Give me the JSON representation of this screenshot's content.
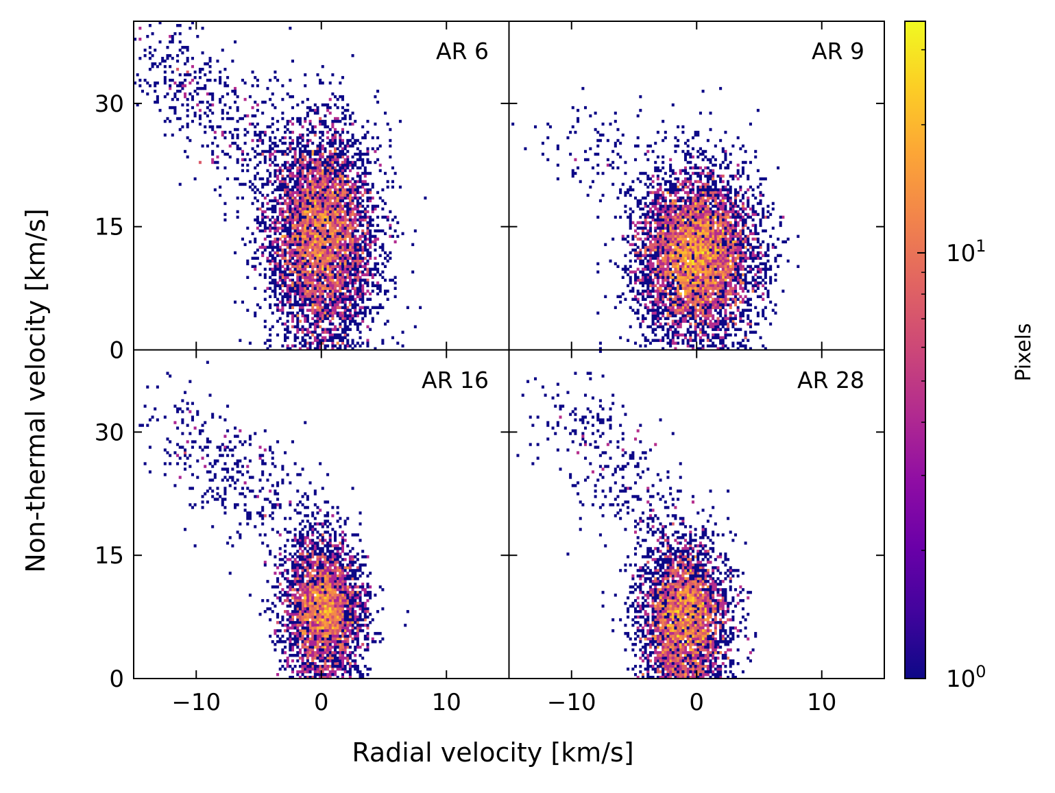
{
  "chart_data": {
    "type": "heatmap",
    "layout": "2x2 shared axes",
    "xlabel": "Radial velocity [km/s]",
    "ylabel": "Non-thermal velocity [km/s]",
    "xlim": [
      -15,
      15
    ],
    "ylim": [
      0,
      40
    ],
    "xticks": [
      -10,
      0,
      10
    ],
    "xtick_labels": [
      "−10",
      "0",
      "10"
    ],
    "yticks": [
      0,
      15,
      30
    ],
    "ytick_labels": [
      "0",
      "15",
      "30"
    ],
    "colorbar": {
      "label": "Pixels",
      "scale": "log",
      "range": [
        1,
        35
      ],
      "colormap": "plasma",
      "tick_values": [
        1,
        10
      ],
      "tick_base": "10",
      "tick_exponents": [
        "0",
        "1"
      ]
    },
    "panels": [
      {
        "label": "AR 6",
        "core_mean": [
          0.0,
          14.0
        ],
        "core_sigma": [
          2.2,
          6.5
        ],
        "core_count": 5200,
        "tail": {
          "from": [
            -3,
            20
          ],
          "to": [
            -14,
            38
          ],
          "count": 520
        },
        "peak_count": 30
      },
      {
        "label": "AR 9",
        "core_mean": [
          0.0,
          11.5
        ],
        "core_sigma": [
          2.4,
          5.0
        ],
        "core_count": 5600,
        "tail": {
          "from": [
            -2,
            22
          ],
          "to": [
            -10,
            26
          ],
          "count": 120
        },
        "peak_count": 34
      },
      {
        "label": "AR 16",
        "core_mean": [
          0.2,
          8.5
        ],
        "core_sigma": [
          1.6,
          4.5
        ],
        "core_count": 3300,
        "tail": {
          "from": [
            -2,
            18
          ],
          "to": [
            -12,
            32
          ],
          "count": 380
        },
        "peak_count": 30
      },
      {
        "label": "AR 28",
        "core_mean": [
          -1.0,
          7.5
        ],
        "core_sigma": [
          1.8,
          4.6
        ],
        "core_count": 3500,
        "tail": {
          "from": [
            -3,
            18
          ],
          "to": [
            -10,
            33
          ],
          "count": 300
        },
        "peak_count": 28
      }
    ]
  }
}
